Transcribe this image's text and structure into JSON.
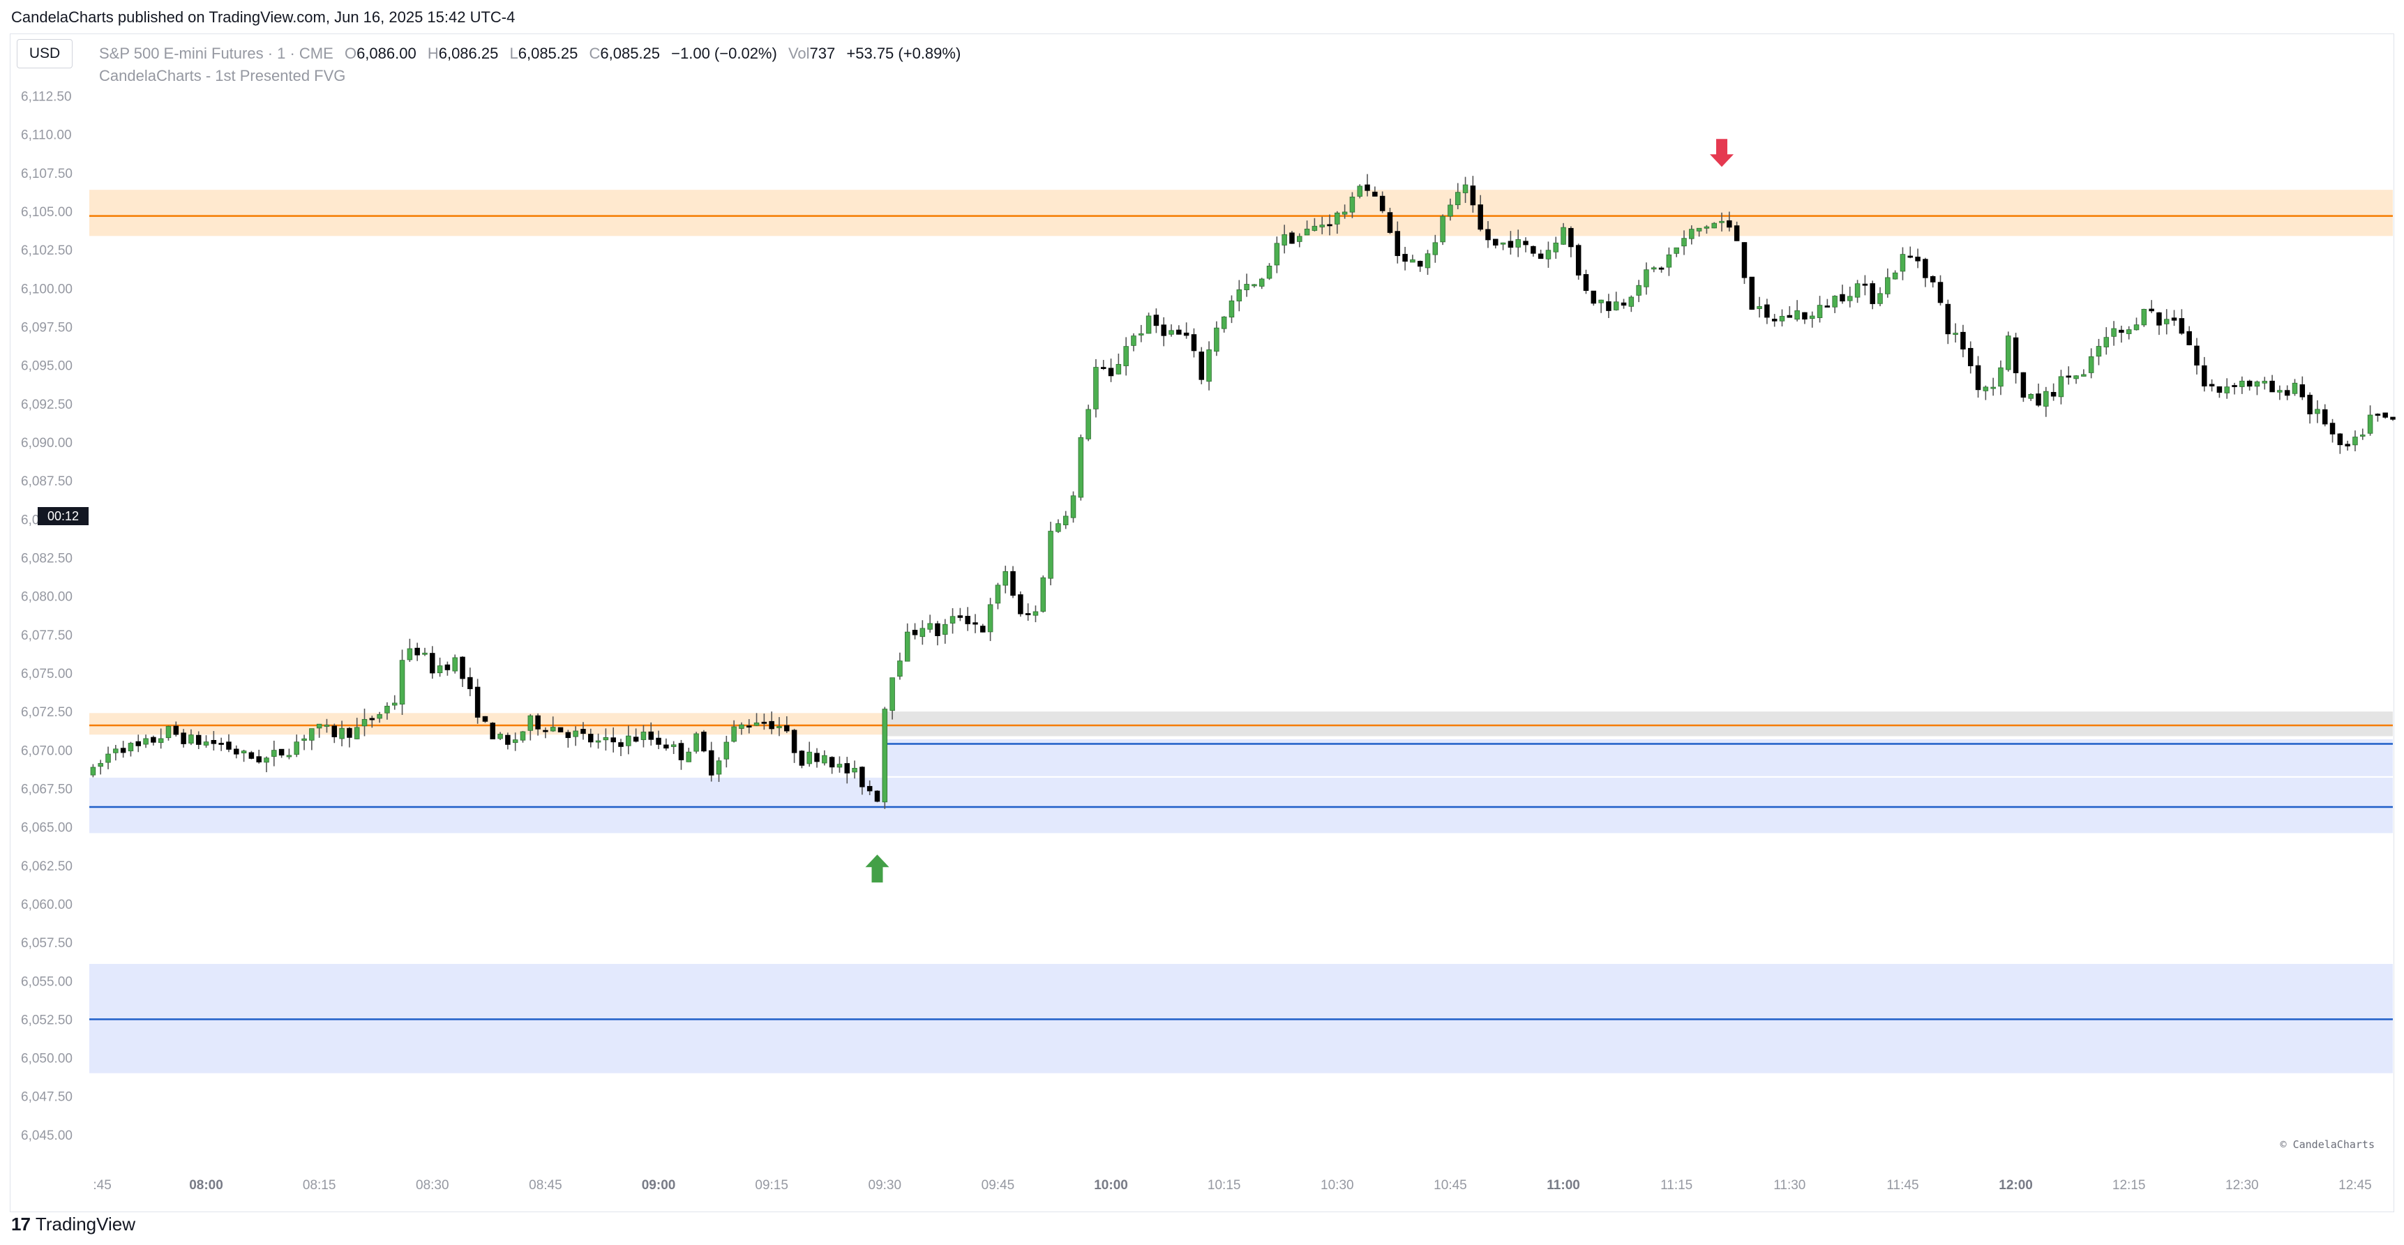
{
  "header": {
    "publish_info": "CandelaCharts published on TradingView.com, Jun 16, 2025 15:42 UTC-4"
  },
  "legend": {
    "currency_button": "USD",
    "symbol": "S&P 500 E-mini Futures · 1 · CME",
    "open_label": "O",
    "open_value": "6,086.00",
    "high_label": "H",
    "high_value": "6,086.25",
    "low_label": "L",
    "low_value": "6,085.25",
    "close_label": "C",
    "close_value": "6,085.25",
    "change": "−1.00 (−0.02%)",
    "vol_label": "Vol",
    "vol_value": "737",
    "session_change": "+53.75 (+0.89%)",
    "indicator": "CandelaCharts - 1st Presented FVG"
  },
  "countdown": "00:12",
  "watermark": "© CandelaCharts",
  "footer": {
    "brand": "TradingView",
    "logo_mark": "17"
  },
  "colors": {
    "bull": "#4caf50",
    "bear": "#000000",
    "wick": "#555555",
    "orange_line": "#f57c00",
    "orange_zone": "#ffe9cf",
    "blue_line": "#1e5ec8",
    "blue_zone": "#e3e9fd",
    "grey_zone": "#e4e4e4",
    "up_arrow": "#43a047",
    "down_arrow": "#e53950",
    "axis_text": "#9598a1",
    "axis_text_bold": "#787b86"
  },
  "chart_data": {
    "type": "candlestick",
    "timeframe": "1 minute",
    "ylim": [
      6043.5,
      6113.75
    ],
    "y_ticks": [
      "6,045.00",
      "6,047.50",
      "6,050.00",
      "6,052.50",
      "6,055.00",
      "6,057.50",
      "6,060.00",
      "6,062.50",
      "6,065.00",
      "6,067.50",
      "6,070.00",
      "6,072.50",
      "6,075.00",
      "6,077.50",
      "6,080.00",
      "6,082.50",
      "6,085.00",
      "6,087.50",
      "6,090.00",
      "6,092.50",
      "6,095.00",
      "6,097.50",
      "6,100.00",
      "6,102.50",
      "6,105.00",
      "6,107.50",
      "6,110.00",
      "6,112.50"
    ],
    "y_tick_values": [
      6045,
      6047.5,
      6050,
      6052.5,
      6055,
      6057.5,
      6060,
      6062.5,
      6065,
      6067.5,
      6070,
      6072.5,
      6075,
      6077.5,
      6080,
      6082.5,
      6085,
      6087.5,
      6090,
      6092.5,
      6095,
      6097.5,
      6100,
      6102.5,
      6105,
      6107.5,
      6110,
      6112.5
    ],
    "x_ticks": [
      {
        "label": ":45",
        "t": -15,
        "bold": false
      },
      {
        "label": "08:00",
        "t": 0,
        "bold": true
      },
      {
        "label": "08:15",
        "t": 15,
        "bold": false
      },
      {
        "label": "08:30",
        "t": 30,
        "bold": false
      },
      {
        "label": "08:45",
        "t": 45,
        "bold": false
      },
      {
        "label": "09:00",
        "t": 60,
        "bold": true
      },
      {
        "label": "09:15",
        "t": 75,
        "bold": false
      },
      {
        "label": "09:30",
        "t": 90,
        "bold": false
      },
      {
        "label": "09:45",
        "t": 105,
        "bold": false
      },
      {
        "label": "10:00",
        "t": 120,
        "bold": true
      },
      {
        "label": "10:15",
        "t": 135,
        "bold": false
      },
      {
        "label": "10:30",
        "t": 150,
        "bold": false
      },
      {
        "label": "10:45",
        "t": 165,
        "bold": false
      },
      {
        "label": "11:00",
        "t": 180,
        "bold": true
      },
      {
        "label": "11:15",
        "t": 195,
        "bold": false
      },
      {
        "label": "11:30",
        "t": 210,
        "bold": false
      },
      {
        "label": "11:45",
        "t": 225,
        "bold": false
      },
      {
        "label": "12:00",
        "t": 240,
        "bold": true
      },
      {
        "label": "12:15",
        "t": 255,
        "bold": false
      },
      {
        "label": "12:30",
        "t": 270,
        "bold": false
      },
      {
        "label": "12:45",
        "t": 285,
        "bold": false
      }
    ],
    "x_range": [
      -15.5,
      290
    ],
    "anchors": [
      [
        -15,
        6068.5
      ],
      [
        -12,
        6070.3
      ],
      [
        -9,
        6070.1
      ],
      [
        -5,
        6071.2
      ],
      [
        -2,
        6070.6
      ],
      [
        2,
        6070.4
      ],
      [
        5,
        6069.6
      ],
      [
        8,
        6069.4
      ],
      [
        11,
        6070.1
      ],
      [
        14,
        6071.4
      ],
      [
        17,
        6071.1
      ],
      [
        20,
        6071.3
      ],
      [
        23,
        6072.4
      ],
      [
        25,
        6073.2
      ],
      [
        26,
        6076.0
      ],
      [
        28,
        6076.5
      ],
      [
        30,
        6075.3
      ],
      [
        33,
        6075.8
      ],
      [
        35,
        6073.6
      ],
      [
        37,
        6071.5
      ],
      [
        40,
        6070.2
      ],
      [
        43,
        6071.8
      ],
      [
        46,
        6071.5
      ],
      [
        49,
        6071.0
      ],
      [
        52,
        6070.4
      ],
      [
        55,
        6070.6
      ],
      [
        58,
        6070.9
      ],
      [
        61,
        6070.4
      ],
      [
        63,
        6069.7
      ],
      [
        65,
        6070.7
      ],
      [
        67,
        6068.8
      ],
      [
        70,
        6071.3
      ],
      [
        73,
        6072.0
      ],
      [
        76,
        6071.6
      ],
      [
        79,
        6069.4
      ],
      [
        82,
        6069.8
      ],
      [
        84,
        6068.8
      ],
      [
        86,
        6068.4
      ],
      [
        88,
        6067.4
      ],
      [
        89,
        6067.0
      ],
      [
        90,
        6072.8
      ],
      [
        91,
        6075.1
      ],
      [
        93,
        6077.3
      ],
      [
        95,
        6078.2
      ],
      [
        97,
        6077.6
      ],
      [
        100,
        6078.8
      ],
      [
        103,
        6077.9
      ],
      [
        106,
        6081.7
      ],
      [
        108,
        6078.6
      ],
      [
        110,
        6078.9
      ],
      [
        112,
        6084.1
      ],
      [
        114,
        6085.6
      ],
      [
        115,
        6086.4
      ],
      [
        116,
        6090.0
      ],
      [
        118,
        6094.8
      ],
      [
        120,
        6094.1
      ],
      [
        122,
        6096.4
      ],
      [
        125,
        6097.8
      ],
      [
        128,
        6097.1
      ],
      [
        130,
        6096.8
      ],
      [
        132,
        6094.3
      ],
      [
        134,
        6097.6
      ],
      [
        137,
        6099.8
      ],
      [
        140,
        6100.3
      ],
      [
        142,
        6103.1
      ],
      [
        145,
        6103.4
      ],
      [
        148,
        6104.2
      ],
      [
        150,
        6104.7
      ],
      [
        152,
        6105.5
      ],
      [
        153,
        6107.0
      ],
      [
        155,
        6106.0
      ],
      [
        157,
        6103.5
      ],
      [
        159,
        6101.6
      ],
      [
        161,
        6101.8
      ],
      [
        163,
        6103.2
      ],
      [
        165,
        6105.5
      ],
      [
        167,
        6106.3
      ],
      [
        169,
        6103.7
      ],
      [
        171,
        6102.7
      ],
      [
        173,
        6103.1
      ],
      [
        175,
        6102.6
      ],
      [
        177,
        6102.1
      ],
      [
        179,
        6103.0
      ],
      [
        180,
        6104.3
      ],
      [
        182,
        6100.8
      ],
      [
        184,
        6099.3
      ],
      [
        186,
        6098.9
      ],
      [
        188,
        6099.2
      ],
      [
        190,
        6100.5
      ],
      [
        193,
        6101.5
      ],
      [
        195,
        6102.6
      ],
      [
        197,
        6103.6
      ],
      [
        199,
        6104.1
      ],
      [
        201,
        6104.3
      ],
      [
        203,
        6103.2
      ],
      [
        205,
        6098.9
      ],
      [
        207,
        6097.9
      ],
      [
        209,
        6098.1
      ],
      [
        211,
        6098.4
      ],
      [
        213,
        6098.1
      ],
      [
        215,
        6099.1
      ],
      [
        217,
        6099.6
      ],
      [
        219,
        6100.2
      ],
      [
        221,
        6099.4
      ],
      [
        223,
        6100.6
      ],
      [
        225,
        6102.0
      ],
      [
        227,
        6101.9
      ],
      [
        229,
        6100.3
      ],
      [
        231,
        6097.4
      ],
      [
        233,
        6096.2
      ],
      [
        235,
        6093.7
      ],
      [
        237,
        6093.7
      ],
      [
        239,
        6096.7
      ],
      [
        241,
        6092.8
      ],
      [
        243,
        6092.6
      ],
      [
        245,
        6093.4
      ],
      [
        247,
        6094.4
      ],
      [
        249,
        6094.2
      ],
      [
        251,
        6096.2
      ],
      [
        253,
        6097.1
      ],
      [
        255,
        6097.1
      ],
      [
        257,
        6099.0
      ],
      [
        259,
        6097.7
      ],
      [
        261,
        6098.2
      ],
      [
        263,
        6096.4
      ],
      [
        265,
        6093.6
      ],
      [
        267,
        6093.4
      ],
      [
        269,
        6094.0
      ],
      [
        271,
        6093.8
      ],
      [
        273,
        6093.6
      ],
      [
        275,
        6093.0
      ],
      [
        277,
        6093.9
      ],
      [
        279,
        6092.1
      ],
      [
        281,
        6091.4
      ],
      [
        283,
        6089.4
      ],
      [
        285,
        6089.9
      ],
      [
        287,
        6091.6
      ],
      [
        290,
        6091.4
      ]
    ],
    "zones": [
      {
        "name": "upper-orange-zone",
        "kind": "orange",
        "y_top": 6106.4,
        "y_bottom": 6103.4,
        "x_start": -15.5,
        "x_end": 290,
        "line": 6104.7
      },
      {
        "name": "lower-orange-zone",
        "kind": "orange",
        "y_top": 6072.4,
        "y_bottom": 6071.0,
        "x_start": -15.5,
        "x_end": 90,
        "line": 6071.6
      },
      {
        "name": "grey-fvg-zone",
        "kind": "grey",
        "y_top": 6072.5,
        "y_bottom": 6070.9,
        "x_start": 90,
        "x_end": 290,
        "line": 6071.6
      },
      {
        "name": "blue-fvg-zone-1",
        "kind": "blue",
        "y_top": 6070.7,
        "y_bottom": 6068.3,
        "x_start": 90,
        "x_end": 290,
        "line": 6070.4
      },
      {
        "name": "blue-fvg-zone-2",
        "kind": "blue",
        "y_top": 6068.2,
        "y_bottom": 6064.6,
        "x_start": -15.5,
        "x_end": 290,
        "line": 6066.3
      },
      {
        "name": "blue-fvg-zone-3",
        "kind": "blue",
        "y_top": 6056.1,
        "y_bottom": 6049.0,
        "x_start": -15.5,
        "x_end": 290,
        "line": 6052.5
      }
    ],
    "markers": [
      {
        "name": "bullish-arrow",
        "direction": "up",
        "t": 89,
        "y": 6062.3
      },
      {
        "name": "bearish-arrow",
        "direction": "down",
        "t": 201,
        "y": 6108.8
      }
    ]
  }
}
